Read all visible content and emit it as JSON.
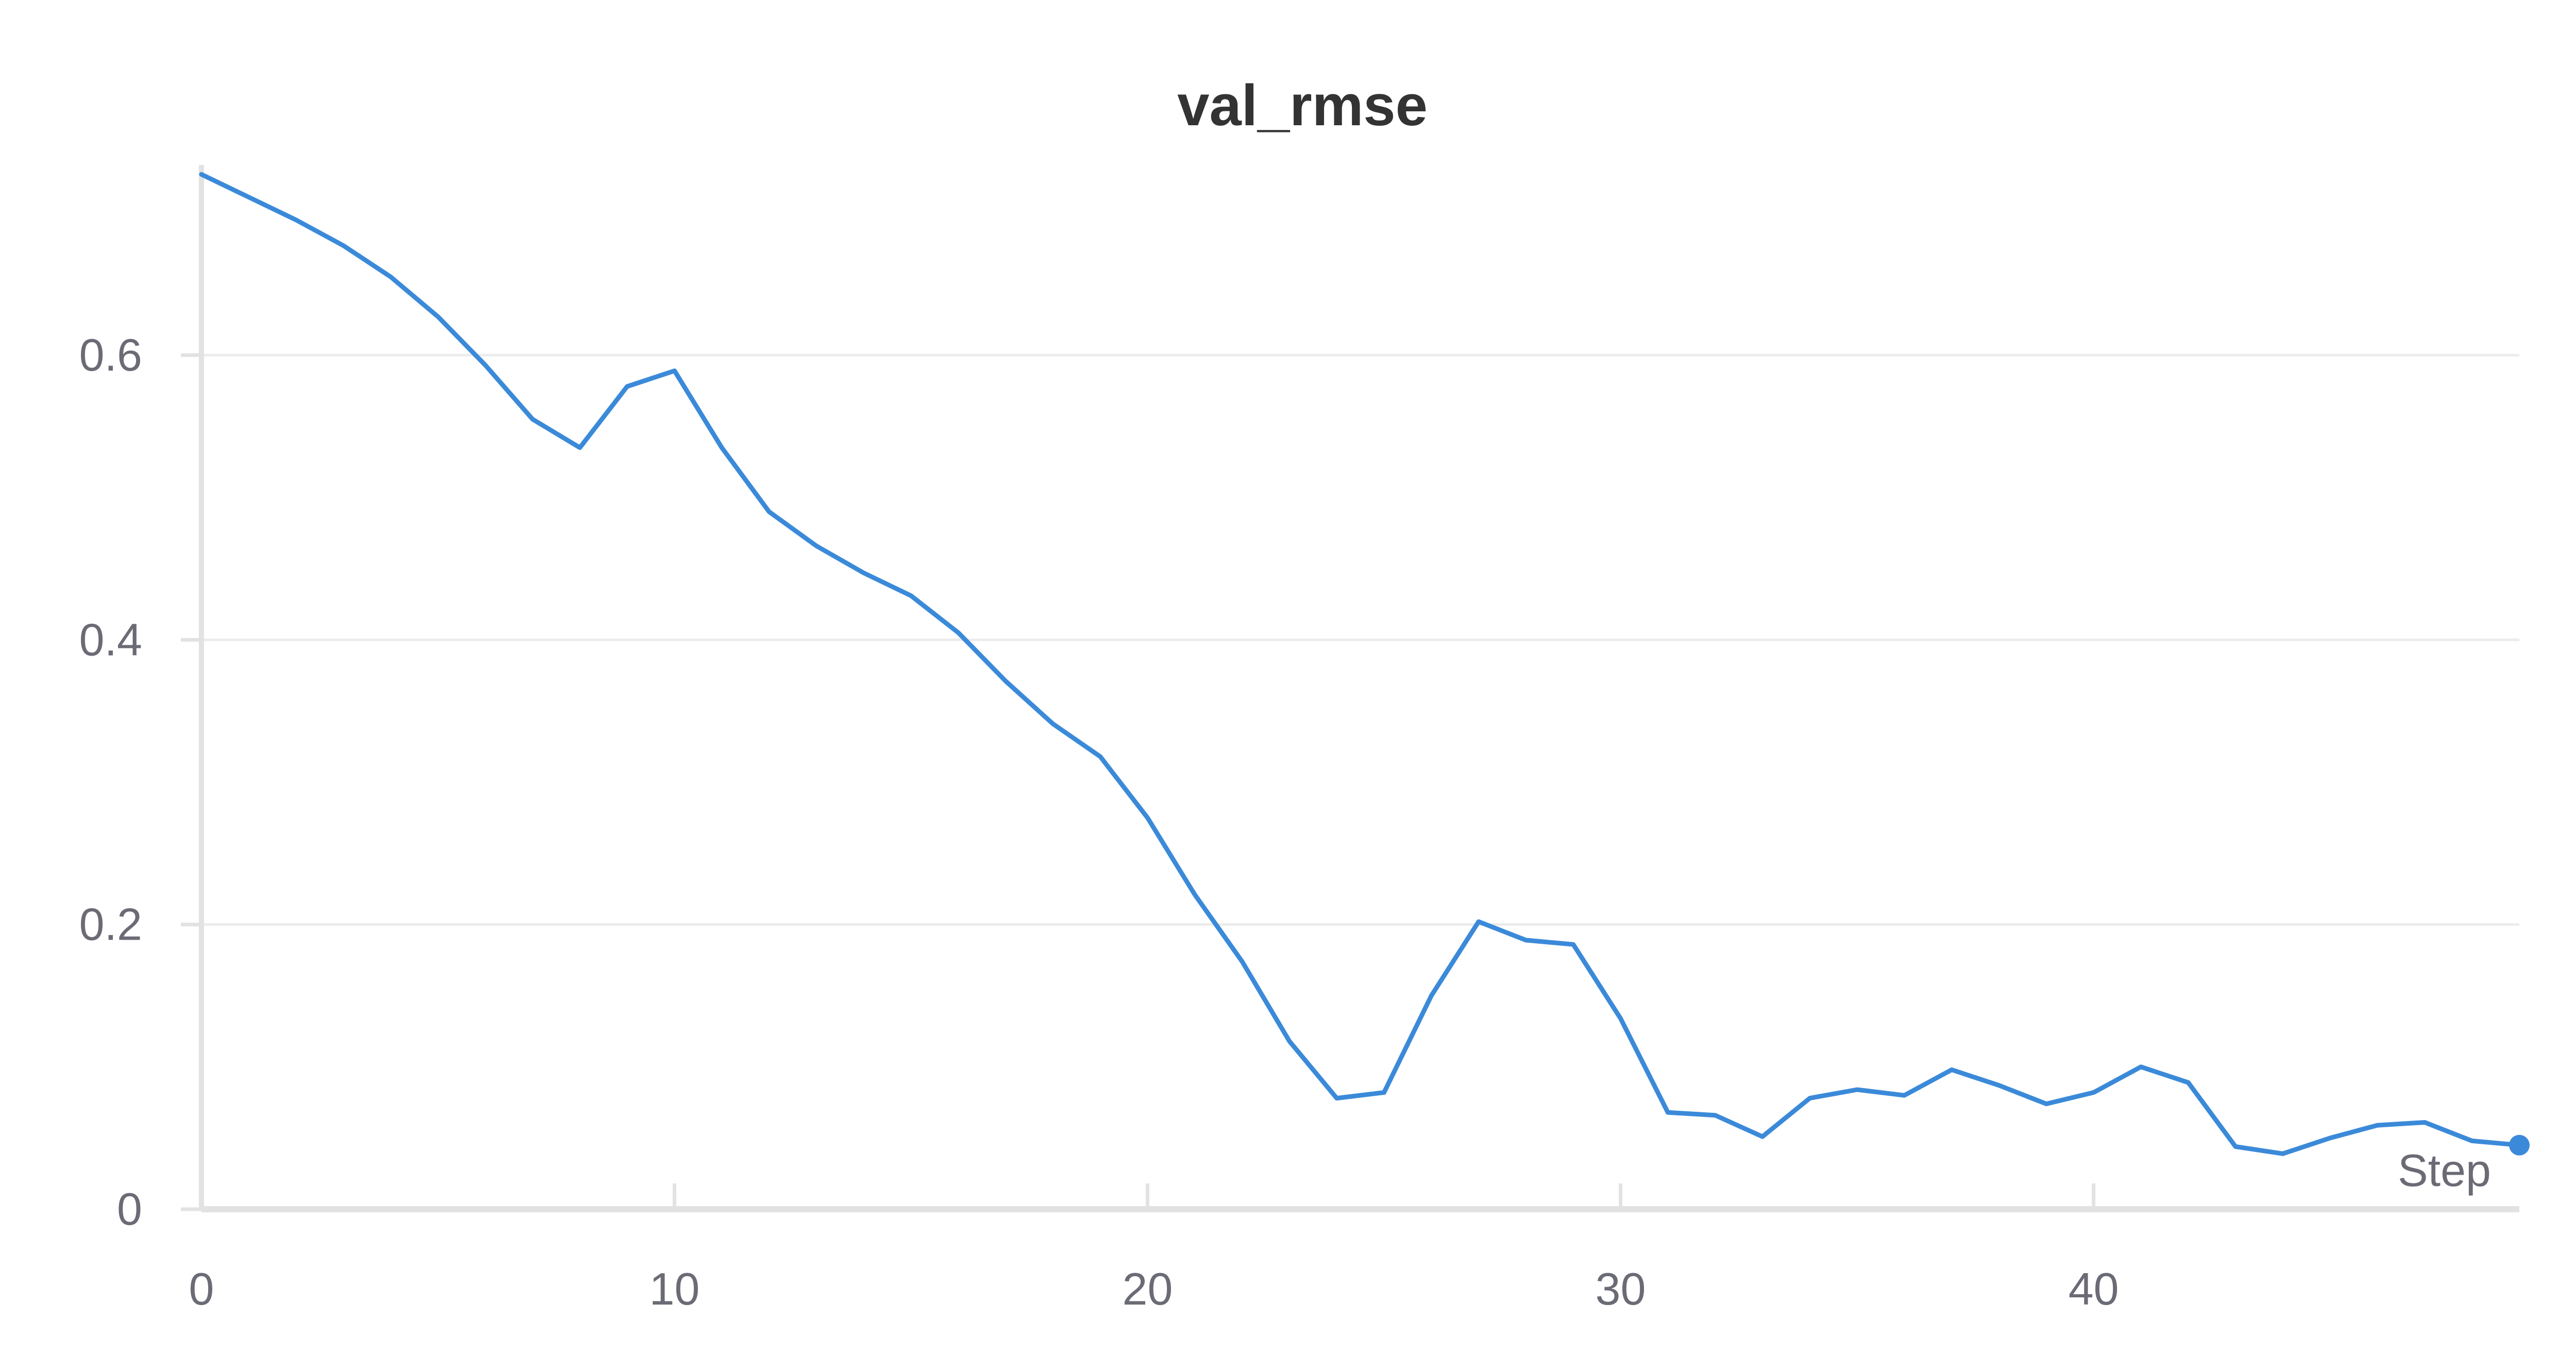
{
  "chart_data": {
    "type": "line",
    "title": "val_rmse",
    "xlabel": "Step",
    "ylabel": "",
    "xlim": [
      0,
      49
    ],
    "ylim": [
      0,
      0.73
    ],
    "x_ticks": [
      0,
      10,
      20,
      30,
      40
    ],
    "y_ticks": [
      0,
      0.2,
      0.4,
      0.6
    ],
    "x_tick_labels": [
      "0",
      "10",
      "20",
      "30",
      "40"
    ],
    "y_tick_labels": [
      "0",
      "0.2",
      "0.4",
      "0.6"
    ],
    "grid": true,
    "legend": "none",
    "series": [
      {
        "color": "#3b8ad9",
        "x": [
          0,
          1,
          2,
          3,
          4,
          5,
          6,
          7,
          8,
          9,
          10,
          11,
          12,
          13,
          14,
          15,
          16,
          17,
          18,
          19,
          20,
          21,
          22,
          23,
          24,
          25,
          26,
          27,
          28,
          29,
          30,
          31,
          32,
          33,
          34,
          35,
          36,
          37,
          38,
          39,
          40,
          41,
          42,
          43,
          44,
          45,
          46,
          47,
          48,
          49
        ],
        "y": [
          0.727,
          0.711,
          0.695,
          0.677,
          0.655,
          0.627,
          0.593,
          0.555,
          0.535,
          0.578,
          0.589,
          0.535,
          0.49,
          0.466,
          0.447,
          0.431,
          0.405,
          0.371,
          0.341,
          0.318,
          0.275,
          0.221,
          0.174,
          0.118,
          0.078,
          0.082,
          0.15,
          0.202,
          0.189,
          0.186,
          0.134,
          0.068,
          0.066,
          0.051,
          0.078,
          0.084,
          0.08,
          0.098,
          0.087,
          0.074,
          0.082,
          0.1,
          0.089,
          0.044,
          0.039,
          0.05,
          0.059,
          0.061,
          0.048,
          0.045
        ]
      }
    ]
  }
}
